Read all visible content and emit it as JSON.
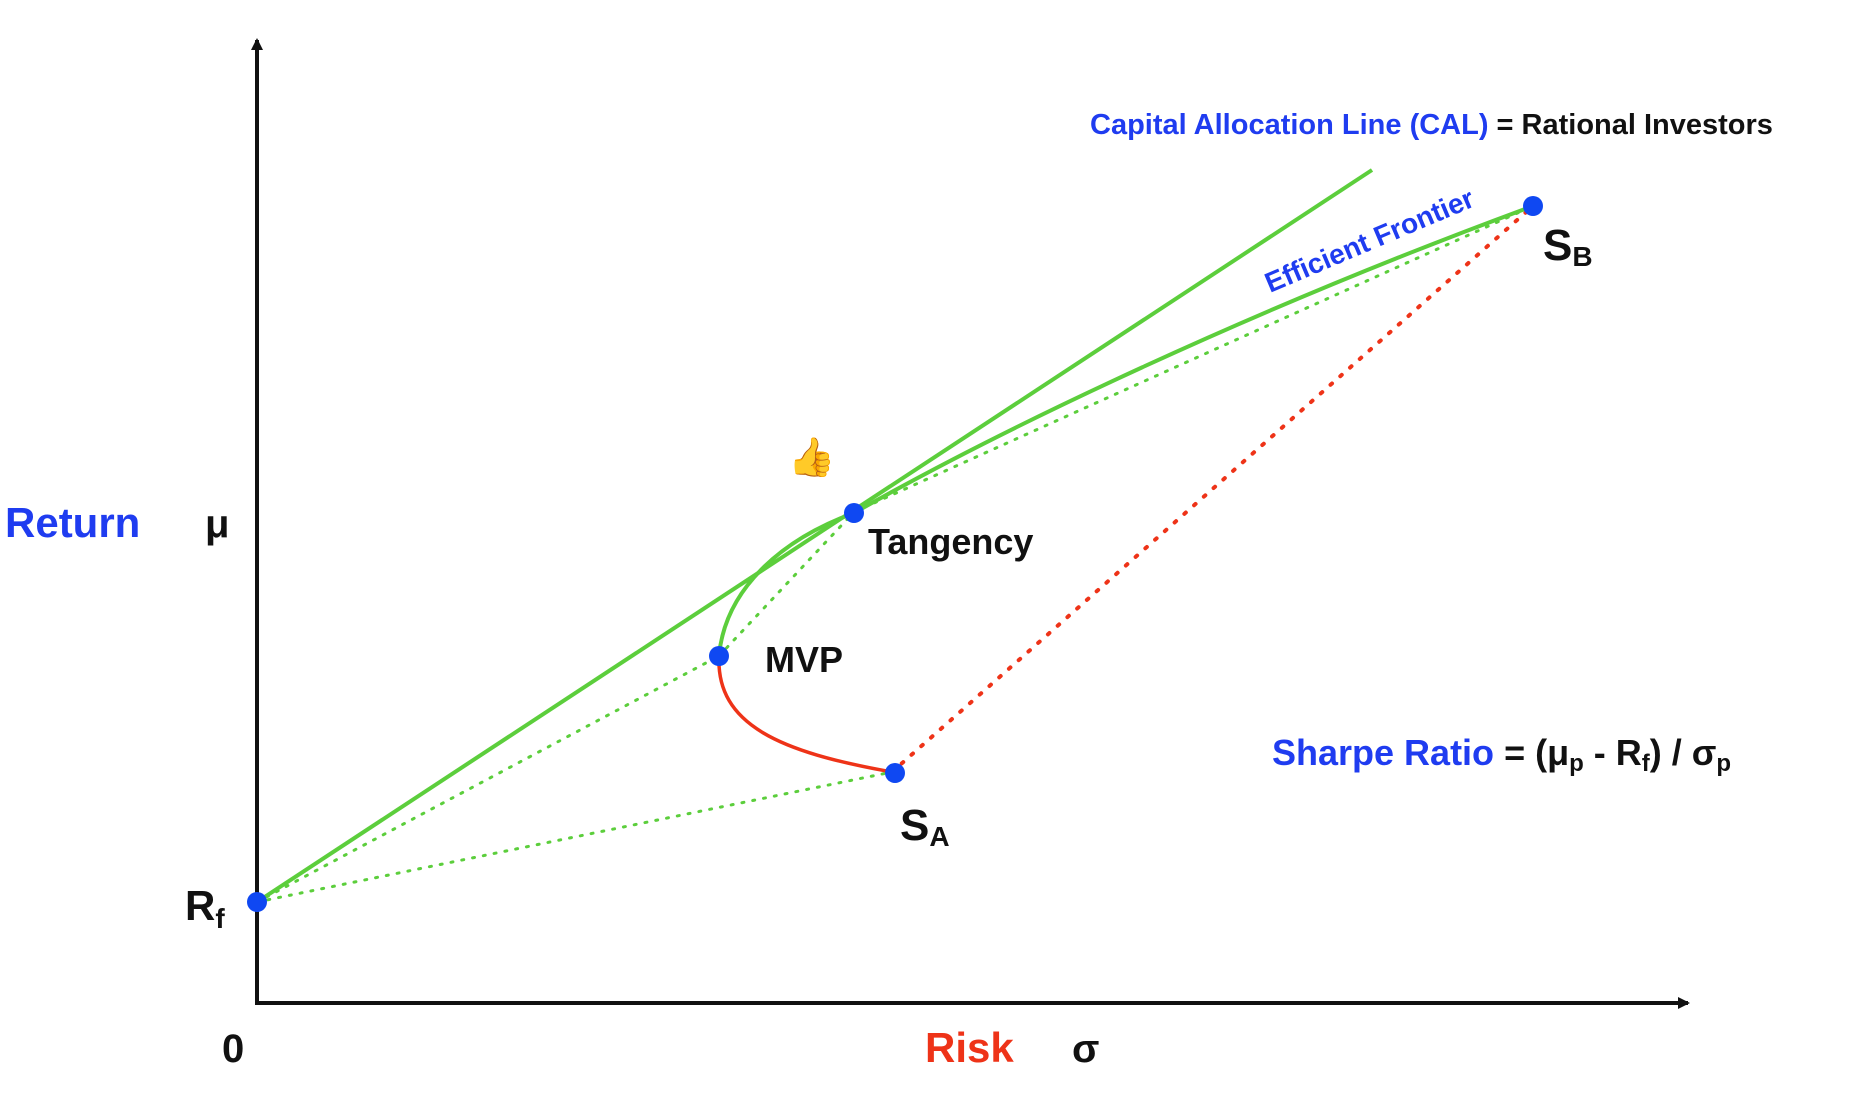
{
  "axes": {
    "y_label": "Return",
    "y_symbol": "μ",
    "x_label": "Risk",
    "x_symbol": "σ",
    "origin_label": "0"
  },
  "points": {
    "rf": {
      "base": "R",
      "sub": "f"
    },
    "tangency": "Tangency",
    "mvp": "MVP",
    "sa": {
      "base": "S",
      "sub": "A"
    },
    "sb": {
      "base": "S",
      "sub": "B"
    }
  },
  "annotations": {
    "cal_name": "Capital Allocation Line (CAL)",
    "cal_suffix": "= Rational Investors",
    "efficient_frontier": "Efficient Frontier",
    "sharpe_name": "Sharpe Ratio",
    "sharpe_formula_prefix": "= (μ",
    "sharpe_sub_p1": "p",
    "sharpe_formula_mid": " - R",
    "sharpe_sub_f": "f",
    "sharpe_formula_end": ") / σ",
    "sharpe_sub_p2": "p"
  },
  "icons": {
    "thumbs_up": "👍"
  },
  "colors": {
    "accent_blue": "#1f3cf0",
    "frontier_green": "#5cce3c",
    "inefficient_red": "#ee3318",
    "point_blue": "#0f48f2",
    "text_black": "#111111"
  }
}
